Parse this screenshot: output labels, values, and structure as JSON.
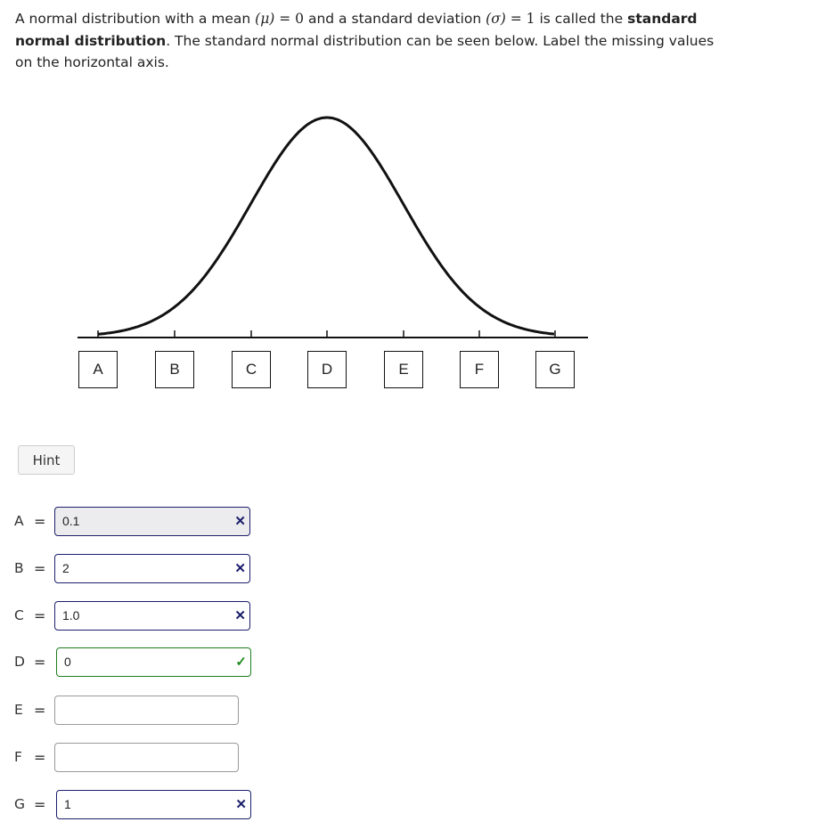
{
  "question": {
    "p1": "A normal distribution with a mean ",
    "mu": "(μ)",
    "eq": " = ",
    "mean": "0",
    "p2": " and a standard deviation ",
    "sigma": "(σ)",
    "sd": "1",
    "p3": " is called the ",
    "bold": "standard normal distribution",
    "p4": ". The standard normal distribution can be seen below. Label the missing values on the horizontal axis."
  },
  "axis_labels": [
    "A",
    "B",
    "C",
    "D",
    "E",
    "F",
    "G"
  ],
  "hint_label": "Hint",
  "equals": "=",
  "answers": [
    {
      "label": "A",
      "value": "0.1",
      "status": "incorrect"
    },
    {
      "label": "B",
      "value": "2",
      "status": "incorrect"
    },
    {
      "label": "C",
      "value": "1.0",
      "status": "incorrect"
    },
    {
      "label": "D",
      "value": "0",
      "status": "correct"
    },
    {
      "label": "E",
      "value": "",
      "status": "empty"
    },
    {
      "label": "F",
      "value": "",
      "status": "empty"
    },
    {
      "label": "G",
      "value": "1",
      "status": "incorrect"
    }
  ],
  "colors": {
    "incorrect": "#1b1f6b",
    "correct": "#1e7d1e"
  }
}
